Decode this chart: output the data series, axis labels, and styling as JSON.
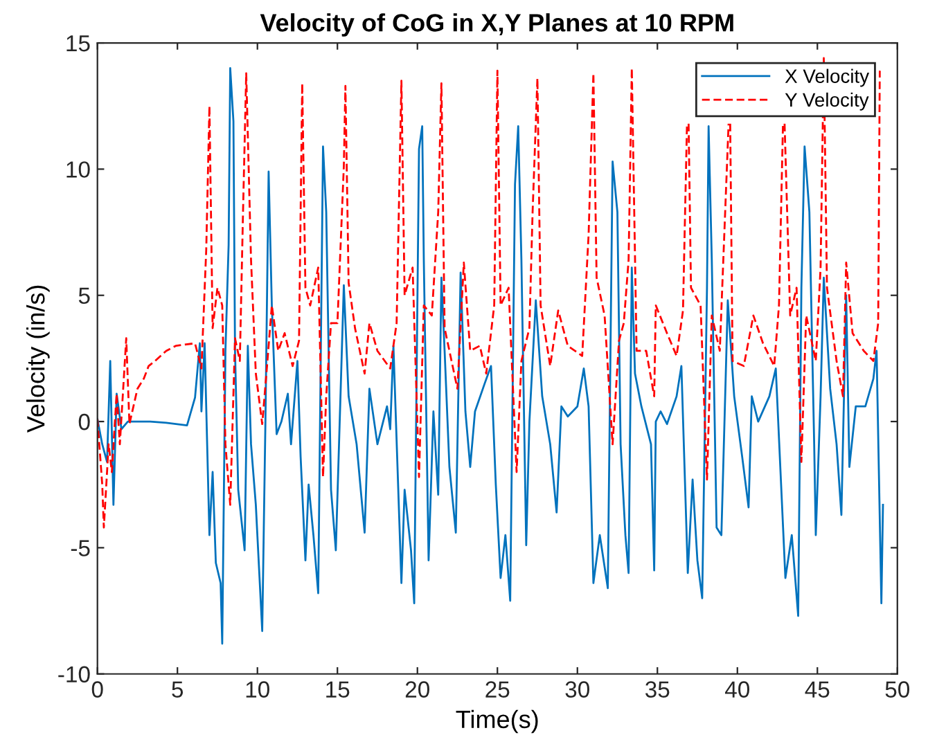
{
  "chart_data": {
    "type": "line",
    "title": "Velocity of CoG in X,Y Planes at 10 RPM",
    "xlabel": "Time(s)",
    "ylabel": "Velocity (in/s)",
    "xlim": [
      0,
      50
    ],
    "xticks": [
      0,
      5,
      10,
      15,
      20,
      25,
      30,
      35,
      40,
      45,
      50
    ],
    "ylim": [
      -10,
      15
    ],
    "yticks": [
      -10,
      -5,
      0,
      5,
      10,
      15
    ],
    "grid": false,
    "legend": "top right",
    "series": [
      {
        "name": "X Velocity",
        "color": "#0072bd",
        "line_style": "solid",
        "x": [
          0,
          0.3,
          0.6,
          0.8,
          1.0,
          1.2,
          1.5,
          1.9,
          3.3,
          4.3,
          5.6,
          6.1,
          6.4,
          6.5,
          6.7,
          7.0,
          7.2,
          7.4,
          7.7,
          7.8,
          8.0,
          8.2,
          8.3,
          8.5,
          8.6,
          8.8,
          9.2,
          9.4,
          9.6,
          9.9,
          10.3,
          10.5,
          10.7,
          10.9,
          11.2,
          11.5,
          11.9,
          12.1,
          12.5,
          12.7,
          13.0,
          13.2,
          13.5,
          13.8,
          14.1,
          14.3,
          14.6,
          14.9,
          15.4,
          15.7,
          16.2,
          16.7,
          17.0,
          17.5,
          18.1,
          18.3,
          18.5,
          19.0,
          19.2,
          19.6,
          19.8,
          20.1,
          20.3,
          20.4,
          20.7,
          21.0,
          21.3,
          21.5,
          21.7,
          22.0,
          22.4,
          22.7,
          23.0,
          23.3,
          23.6,
          24.2,
          24.6,
          24.9,
          25.2,
          25.5,
          25.8,
          26.1,
          26.3,
          26.5,
          26.8,
          27.0,
          27.4,
          27.8,
          28.3,
          28.7,
          29.0,
          29.4,
          30.0,
          30.4,
          30.7,
          31.0,
          31.4,
          31.9,
          32.2,
          32.5,
          32.7,
          33.0,
          33.2,
          33.4,
          33.6,
          34.0,
          34.6,
          34.8,
          34.9,
          35.2,
          35.6,
          36.2,
          36.5,
          36.9,
          37.2,
          37.5,
          37.8,
          38.1,
          38.2,
          38.4,
          38.7,
          39.0,
          39.4,
          39.8,
          40.3,
          40.7,
          40.9,
          41.3,
          42.0,
          42.4,
          43.0,
          43.4,
          43.8,
          44.0,
          44.2,
          44.5,
          44.8,
          44.9,
          45.2,
          45.4,
          45.8,
          46.2,
          46.5,
          46.8,
          47.0,
          47.4,
          48.0,
          48.5,
          48.7,
          49.0,
          49.1
        ],
        "values": [
          0.1,
          -0.9,
          -1.6,
          2.4,
          -3.3,
          1.1,
          -0.3,
          0,
          0,
          -0.05,
          -0.15,
          0.95,
          3.1,
          0.4,
          3.1,
          -4.5,
          -2,
          -5.6,
          -6.4,
          -8.8,
          2.8,
          7,
          14,
          11.9,
          2.8,
          -2.7,
          -5.1,
          3,
          -0.9,
          -3.3,
          -8.3,
          0,
          9.9,
          4.6,
          -0.5,
          0,
          1.1,
          -0.9,
          2.4,
          -1.4,
          -5.5,
          -2.5,
          -4.5,
          -6.8,
          10.9,
          8.3,
          -2.7,
          -5.1,
          5.4,
          1,
          -0.9,
          -4.4,
          1.3,
          -0.9,
          0.6,
          -0.3,
          3,
          -6.4,
          -2.7,
          -5.1,
          -7.2,
          10.8,
          11.7,
          6.4,
          -5.5,
          0.4,
          -2.9,
          5.7,
          2.8,
          -1.8,
          -4.4,
          5.9,
          0.4,
          -1.8,
          0.4,
          1.5,
          2.2,
          -2.5,
          -6.2,
          -4.5,
          -7.1,
          9.4,
          11.7,
          6.4,
          -4.9,
          0,
          4.8,
          1,
          -0.9,
          -3.6,
          0.6,
          0.2,
          0.6,
          2.1,
          0.6,
          -6.4,
          -4.5,
          -6.6,
          10.3,
          8.3,
          -0.9,
          -4.5,
          -6,
          6.1,
          1.9,
          0.6,
          -0.9,
          -5.9,
          0,
          0.4,
          -0.1,
          1,
          2.2,
          -6,
          -2.3,
          -5.5,
          -7,
          5.3,
          11.7,
          6.4,
          -4.2,
          -4.5,
          4.8,
          1,
          -1.4,
          -3.4,
          1,
          0,
          1,
          2.1,
          -6.2,
          -4.5,
          -7.7,
          5.3,
          10.9,
          8.3,
          -0.9,
          -4.5,
          1,
          5.7,
          1.3,
          -0.9,
          -3.7,
          5,
          -1.8,
          0.6,
          0.6,
          1.7,
          2.8,
          -7.2,
          -3.3
        ]
      },
      {
        "name": "Y Velocity",
        "color": "#ff0000",
        "line_style": "dashed",
        "x": [
          0,
          0.3,
          0.4,
          0.7,
          0.9,
          1.2,
          1.4,
          1.8,
          2.0,
          2.5,
          2.9,
          3.2,
          3.6,
          4.3,
          4.9,
          6.1,
          6.5,
          6.8,
          7.0,
          7.2,
          7.5,
          7.8,
          8.0,
          8.3,
          8.6,
          8.9,
          9.1,
          9.3,
          9.6,
          9.9,
          10.3,
          10.6,
          10.9,
          11.3,
          11.7,
          12.2,
          12.6,
          12.8,
          13.0,
          13.3,
          13.8,
          14.1,
          14.3,
          14.6,
          15.0,
          15.4,
          15.5,
          15.7,
          16.1,
          16.7,
          17.0,
          17.5,
          18.3,
          18.7,
          19.0,
          19.2,
          19.7,
          20.1,
          20.4,
          20.9,
          21.3,
          21.5,
          21.7,
          22.5,
          22.9,
          23.3,
          23.9,
          24.3,
          24.8,
          25.0,
          25.2,
          25.7,
          26.2,
          26.5,
          27.0,
          27.2,
          27.5,
          27.7,
          28.3,
          28.8,
          29.4,
          30.3,
          30.7,
          31.0,
          31.2,
          31.7,
          32.2,
          32.6,
          32.9,
          33.2,
          33.4,
          33.7,
          34.3,
          34.8,
          34.9,
          35.6,
          36.2,
          36.6,
          36.85,
          36.9,
          36.95,
          37.1,
          37.7,
          38.1,
          38.4,
          38.9,
          39.45,
          39.5,
          39.55,
          39.7,
          40.4,
          41.0,
          41.6,
          42.3,
          42.6,
          42.85,
          42.9,
          42.95,
          43.3,
          43.7,
          44.0,
          44.3,
          44.9,
          45.2,
          45.4,
          45.6,
          46.2,
          46.6,
          46.8,
          47.2,
          47.9,
          48.5,
          48.8,
          48.9
        ],
        "values": [
          0.1,
          -2.5,
          -4.2,
          -0.9,
          -2,
          1.1,
          -0.9,
          3.3,
          -0.1,
          1.3,
          1.7,
          2.2,
          2.4,
          2.8,
          3,
          3.1,
          2.1,
          6.8,
          12.5,
          3.7,
          5.3,
          4.6,
          -0.9,
          -3.3,
          3.3,
          2.4,
          8.3,
          13.8,
          6.4,
          1.9,
          -0.1,
          2.2,
          4.6,
          2.8,
          3.5,
          2.2,
          3.2,
          13.4,
          5.3,
          4.6,
          6.1,
          -2.2,
          1,
          3.9,
          3.9,
          10.1,
          13.3,
          5.5,
          3.7,
          1.9,
          3.9,
          2.8,
          2.1,
          3.9,
          13.5,
          5,
          6.1,
          -2.2,
          4.6,
          4.2,
          8.3,
          13.4,
          3.7,
          1.3,
          6.3,
          2.8,
          3,
          1.9,
          4.6,
          13.9,
          4.6,
          5.3,
          -2,
          2.4,
          3.7,
          8.3,
          13.6,
          4.6,
          2.2,
          4.4,
          3,
          2.6,
          7.4,
          13.8,
          5.7,
          4.2,
          -0.9,
          3.2,
          3.9,
          6.4,
          14,
          2.8,
          2.8,
          1,
          4.6,
          3.5,
          2.6,
          4.4,
          11.8,
          null,
          11.8,
          5.3,
          4.6,
          -2.3,
          4.2,
          2.8,
          11.8,
          null,
          11.8,
          2.4,
          2.2,
          4.2,
          3.1,
          2.2,
          4.6,
          11.8,
          null,
          11.8,
          4.2,
          5.3,
          -1.6,
          4.2,
          2.4,
          6.1,
          14.4,
          5.3,
          2.4,
          1,
          6.3,
          3.5,
          2.8,
          2.4,
          3.9,
          13.9
        ]
      }
    ]
  }
}
